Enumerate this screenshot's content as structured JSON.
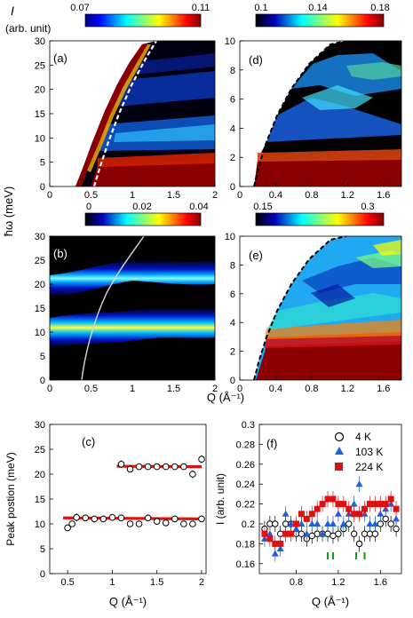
{
  "figure": {
    "ylabel_main": "ħω (meV)",
    "xlabel_main": "Q (Å⁻¹)",
    "cbar_title_sym": "I",
    "cbar_title_unit": "(arb. unit)"
  },
  "colorbars": {
    "a": {
      "min": "0.07",
      "max": "0.11",
      "ticks": []
    },
    "b": {
      "min": "0",
      "mid": "0.02",
      "max": "0.04"
    },
    "d": {
      "min": "0.1",
      "mid": "0.14",
      "max": "0.18"
    },
    "e": {
      "min": "0.15",
      "max": "0.3"
    }
  },
  "chart_data": [
    {
      "id": "a",
      "type": "heatmap",
      "panel_label": "(a)",
      "xlim": [
        0,
        2
      ],
      "ylim": [
        0,
        30
      ],
      "xticks": [
        "0",
        "0.5",
        "1",
        "1.5",
        "2"
      ],
      "yticks": [
        "0",
        "5",
        "10",
        "15",
        "20",
        "25",
        "30"
      ],
      "colormap": "jet",
      "features": {
        "elastic_band_meV": 5,
        "kinematic_edge": "dashed white",
        "bands_meV": [
          11,
          22
        ]
      }
    },
    {
      "id": "b",
      "type": "heatmap",
      "panel_label": "(b)",
      "xlim": [
        0,
        2
      ],
      "ylim": [
        0,
        30
      ],
      "xticks": [
        "0",
        "0.5",
        "1",
        "1.5",
        "2"
      ],
      "yticks": [
        "0",
        "5",
        "10",
        "15",
        "20",
        "25",
        "30"
      ],
      "colormap": "jet",
      "bands_meV": [
        11,
        21.5
      ]
    },
    {
      "id": "c",
      "type": "scatter",
      "panel_label": "(c)",
      "xlabel": "Q (Å⁻¹)",
      "ylabel": "Peak postion  (meV)",
      "xlim": [
        0.3,
        2.05
      ],
      "ylim": [
        0,
        30
      ],
      "xticks": [
        "0",
        "0.5",
        "1",
        "1.5",
        "2"
      ],
      "yticks": [
        "0",
        "5",
        "10",
        "15",
        "20",
        "25",
        "30"
      ],
      "series": [
        {
          "x": [
            0.5,
            0.55,
            0.6,
            0.7,
            0.8,
            0.9,
            1.0,
            1.1,
            1.2,
            1.3,
            1.4,
            1.5,
            1.6,
            1.7,
            1.8,
            1.9,
            2.0
          ],
          "y": [
            9.2,
            10.0,
            11.3,
            11.2,
            11.0,
            11.0,
            11.3,
            11.2,
            10.0,
            10.0,
            11.2,
            10.5,
            10.2,
            11.0,
            10.0,
            10.0,
            11.0
          ],
          "yerr": [
            0.6,
            0.5,
            0.8,
            0.5,
            0.5,
            0.5,
            0.6,
            0.5,
            0.6,
            0.6,
            0.5,
            0.5,
            0.5,
            0.5,
            0.5,
            0.5,
            0.5
          ]
        },
        {
          "x": [
            1.1,
            1.2,
            1.3,
            1.4,
            1.5,
            1.6,
            1.7,
            1.8,
            1.9,
            2.0
          ],
          "y": [
            22.0,
            21.0,
            21.5,
            21.5,
            21.5,
            21.5,
            21.5,
            21.5,
            20.0,
            23.0
          ],
          "yerr": [
            0.8,
            0.6,
            0.6,
            0.6,
            0.6,
            0.6,
            0.6,
            0.6,
            0.8,
            0.8
          ]
        }
      ],
      "fits": [
        {
          "x": [
            0.45,
            2.0
          ],
          "y": [
            11.2,
            11.0
          ]
        },
        {
          "x": [
            1.05,
            2.0
          ],
          "y": [
            21.6,
            21.5
          ]
        }
      ]
    },
    {
      "id": "d",
      "type": "heatmap",
      "panel_label": "(d)",
      "xlim": [
        0,
        1.8
      ],
      "ylim": [
        0,
        10
      ],
      "xticks": [
        "0",
        "0.4",
        "0.8",
        "1.2",
        "1.6"
      ],
      "yticks": [
        "0",
        "2",
        "4",
        "6",
        "8",
        "10"
      ],
      "colormap": "jet"
    },
    {
      "id": "e",
      "type": "heatmap",
      "panel_label": "(e)",
      "xlim": [
        0,
        1.8
      ],
      "ylim": [
        0,
        10
      ],
      "xticks": [
        "0",
        "0.4",
        "0.8",
        "1.2",
        "1.6"
      ],
      "yticks": [
        "0",
        "2",
        "4",
        "6",
        "8",
        "10"
      ],
      "colormap": "jet"
    },
    {
      "id": "f",
      "type": "scatter",
      "panel_label": "(f)",
      "xlabel": "Q (Å⁻¹)",
      "ylabel": "I (arb. unit)",
      "xlim": [
        0.45,
        1.8
      ],
      "ylim": [
        0.15,
        0.3
      ],
      "xticks": [
        "0.8",
        "1.2",
        "1.6"
      ],
      "yticks": [
        "0.16",
        "0.18",
        "0.2",
        "0.22",
        "0.24",
        "0.26",
        "0.28",
        "0.3"
      ],
      "legend": [
        {
          "label": "4 K",
          "marker": "open-circle",
          "color": "#000000"
        },
        {
          "label": "103 K",
          "marker": "triangle",
          "color": "#1f5fdc"
        },
        {
          "label": "224 K",
          "marker": "square",
          "color": "#e01010"
        }
      ],
      "series": [
        {
          "name": "4 K",
          "x": [
            0.5,
            0.55,
            0.6,
            0.65,
            0.7,
            0.75,
            0.8,
            0.85,
            0.9,
            0.95,
            1.0,
            1.05,
            1.1,
            1.15,
            1.2,
            1.25,
            1.3,
            1.35,
            1.4,
            1.45,
            1.5,
            1.55,
            1.6,
            1.65,
            1.7,
            1.75
          ],
          "y": [
            0.195,
            0.2,
            0.2,
            0.19,
            0.2,
            0.2,
            0.19,
            0.19,
            0.185,
            0.188,
            0.19,
            0.19,
            0.19,
            0.188,
            0.19,
            0.195,
            0.2,
            0.19,
            0.18,
            0.19,
            0.19,
            0.19,
            0.2,
            0.205,
            0.2,
            0.195
          ]
        },
        {
          "name": "103 K",
          "x": [
            0.5,
            0.55,
            0.6,
            0.65,
            0.7,
            0.75,
            0.8,
            0.85,
            0.9,
            0.95,
            1.0,
            1.05,
            1.1,
            1.15,
            1.2,
            1.25,
            1.3,
            1.35,
            1.4,
            1.45,
            1.5,
            1.55,
            1.6,
            1.65,
            1.7,
            1.75
          ],
          "y": [
            0.185,
            0.19,
            0.17,
            0.175,
            0.21,
            0.2,
            0.195,
            0.2,
            0.19,
            0.2,
            0.2,
            0.19,
            0.2,
            0.2,
            0.21,
            0.2,
            0.21,
            0.22,
            0.24,
            0.21,
            0.2,
            0.2,
            0.21,
            0.215,
            0.22,
            0.205
          ]
        },
        {
          "name": "224 K",
          "x": [
            0.5,
            0.55,
            0.6,
            0.65,
            0.7,
            0.75,
            0.8,
            0.85,
            0.9,
            0.95,
            1.0,
            1.05,
            1.1,
            1.15,
            1.2,
            1.25,
            1.3,
            1.35,
            1.4,
            1.45,
            1.5,
            1.55,
            1.6,
            1.65,
            1.7,
            1.75
          ],
          "y": [
            0.19,
            0.185,
            0.18,
            0.18,
            0.19,
            0.19,
            0.2,
            0.21,
            0.205,
            0.21,
            0.215,
            0.22,
            0.225,
            0.225,
            0.22,
            0.22,
            0.215,
            0.21,
            0.21,
            0.215,
            0.22,
            0.22,
            0.22,
            0.22,
            0.225,
            0.215
          ]
        }
      ],
      "markers_green": [
        1.1,
        1.15,
        1.37,
        1.45
      ]
    }
  ]
}
